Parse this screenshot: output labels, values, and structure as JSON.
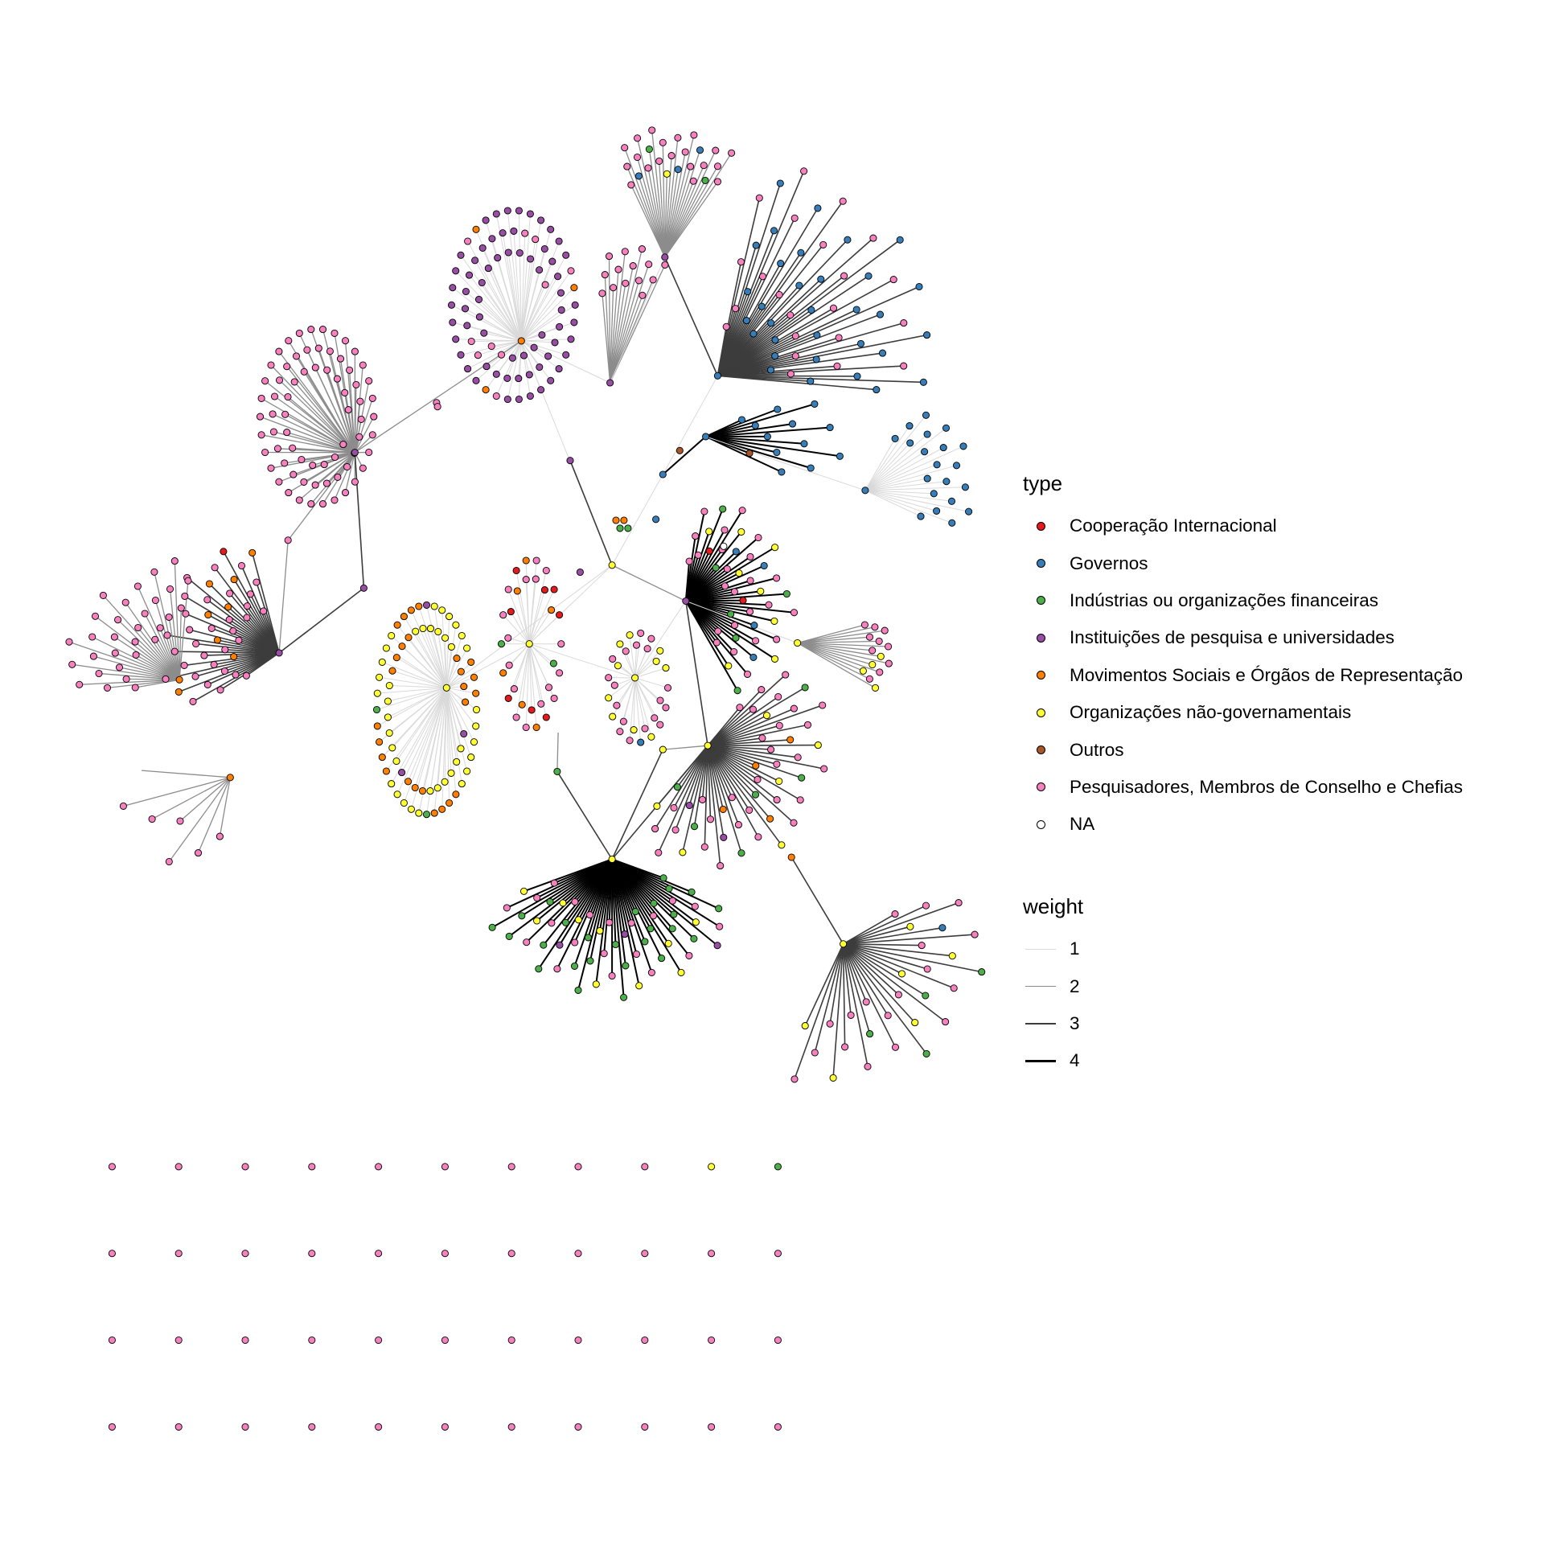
{
  "legend_type": {
    "title": "type",
    "items": [
      {
        "label": "Cooperação Internacional",
        "color": "#e41a1c"
      },
      {
        "label": "Governos",
        "color": "#377eb8"
      },
      {
        "label": "Indústrias ou organizações financeiras",
        "color": "#4daf4a"
      },
      {
        "label": "Instituições de pesquisa e universidades",
        "color": "#984ea3"
      },
      {
        "label": "Movimentos Sociais e Órgãos de Representação",
        "color": "#ff7f00"
      },
      {
        "label": "Organizações não-governamentais",
        "color": "#ffff33"
      },
      {
        "label": "Outros",
        "color": "#a65628"
      },
      {
        "label": "Pesquisadores, Membros de Conselho e Chefias",
        "color": "#f781bf"
      },
      {
        "label": "NA",
        "color": "#ffffff"
      }
    ]
  },
  "legend_weight": {
    "title": "weight",
    "items": [
      {
        "label": "1",
        "color": "#d9d9d9"
      },
      {
        "label": "2",
        "color": "#8c8c8c"
      },
      {
        "label": "3",
        "color": "#3c3c3c"
      },
      {
        "label": "4",
        "color": "#000000"
      }
    ]
  },
  "isolated_nodes_grid": {
    "rows": [
      [
        "pink",
        "pink",
        "pink",
        "pink",
        "pink",
        "pink",
        "pink",
        "pink",
        "pink",
        "yellow",
        "green"
      ],
      [
        "pink",
        "pink",
        "pink",
        "pink",
        "pink",
        "pink",
        "pink",
        "pink",
        "pink",
        "pink",
        "pink"
      ],
      [
        "pink",
        "pink",
        "pink",
        "pink",
        "pink",
        "pink",
        "pink",
        "pink",
        "pink",
        "pink",
        "pink"
      ],
      [
        "pink",
        "pink",
        "pink",
        "pink",
        "pink",
        "pink",
        "pink",
        "pink",
        "pink",
        "pink",
        "pink"
      ]
    ]
  },
  "clusters": [
    {
      "hub": "purple",
      "composition": {
        "pink": 70
      },
      "weight": 2,
      "fan": "ellipse"
    },
    {
      "hub": "orange",
      "composition": {
        "purple": 65,
        "pink": 10,
        "orange": 3
      },
      "weight": 1,
      "fan": "ellipse"
    },
    {
      "hub": "purple",
      "composition": {
        "pink": 14
      },
      "weight": 2,
      "fan": "ray"
    },
    {
      "hub": "purple",
      "composition": {
        "pink": 20,
        "blue": 3,
        "green": 2,
        "yellow": 1
      },
      "weight": 2,
      "fan": "ray"
    },
    {
      "hub": "blue",
      "composition": {
        "pink": 22,
        "blue": 32
      },
      "weight": 3,
      "fan": "ray"
    },
    {
      "hub": "blue",
      "composition": {
        "blue": 20
      },
      "weight": 1,
      "fan": "ray"
    },
    {
      "hub": "blue",
      "composition": {
        "blue": 12,
        "brown": 1
      },
      "weight": 4,
      "fan": "ray"
    },
    {
      "hub": "purple",
      "composition": {
        "pink": 32,
        "orange": 8,
        "red": 1
      },
      "weight": 3,
      "fan": "ray"
    },
    {
      "hub": "orange",
      "composition": {
        "pink": 30
      },
      "weight": 2,
      "fan": "ray"
    },
    {
      "hub": "orange",
      "composition": {
        "pink": 6
      },
      "weight": 2,
      "fan": "ray"
    },
    {
      "hub": "yellow",
      "composition": {
        "yellow": 40,
        "orange": 26,
        "purple": 3,
        "green": 2
      },
      "weight": 1,
      "fan": "ellipse"
    },
    {
      "hub": "yellow",
      "composition": {
        "pink": 16,
        "red": 8,
        "orange": 6,
        "green": 2
      },
      "weight": 1,
      "fan": "ellipse"
    },
    {
      "hub": "yellow",
      "composition": {
        "pink": 18,
        "yellow": 10,
        "blue": 1
      },
      "weight": 1,
      "fan": "ellipse"
    },
    {
      "hub": "purple",
      "composition": {
        "pink": 24,
        "yellow": 8,
        "green": 6,
        "blue": 4,
        "red": 2
      },
      "weight": 4,
      "fan": "ray"
    },
    {
      "hub": "yellow",
      "composition": {
        "pink": 10,
        "yellow": 4
      },
      "weight": 2,
      "fan": "ray"
    },
    {
      "hub": "yellow",
      "composition": {
        "pink": 30,
        "green": 6,
        "orange": 4,
        "yellow": 6,
        "purple": 2
      },
      "weight": 3,
      "fan": "ray"
    },
    {
      "hub": "yellow",
      "composition": {
        "green": 26,
        "pink": 20,
        "yellow": 10,
        "purple": 3
      },
      "weight": 4,
      "fan": "ray"
    },
    {
      "hub": "yellow",
      "composition": {
        "pink": 18,
        "yellow": 6,
        "green": 4,
        "blue": 1
      },
      "weight": 3,
      "fan": "ray"
    }
  ]
}
